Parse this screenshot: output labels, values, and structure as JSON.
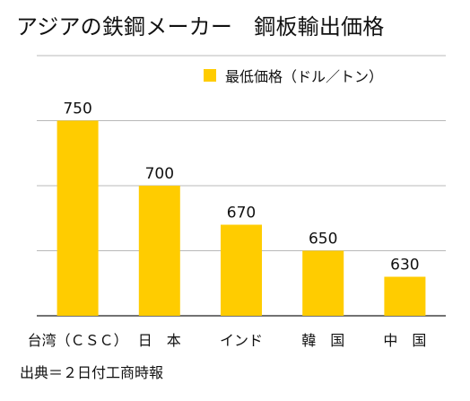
{
  "title": "アジアの鉄鋼メーカー　鋼板輸出価格",
  "source": "出典＝２日付工商時報",
  "colors": {
    "bar": "#ffcc00",
    "grid": "#b8b8b8",
    "axis": "#444444",
    "text": "#111111"
  },
  "chart_data": {
    "type": "bar",
    "title": "アジアの鉄鋼メーカー　鋼板輸出価格",
    "categories": [
      "台湾（ＣＳＣ）",
      "日　本",
      "インド",
      "韓　国",
      "中　国"
    ],
    "series": [
      {
        "name": "最低価格（ドル／トン）",
        "values": [
          750,
          700,
          670,
          650,
          630
        ]
      }
    ],
    "ylim": [
      600,
      800
    ],
    "yticks": [
      600,
      650,
      700,
      750,
      800
    ],
    "grid": true,
    "legend": "top-right",
    "data_labels": true,
    "xlabel": "",
    "ylabel": ""
  }
}
